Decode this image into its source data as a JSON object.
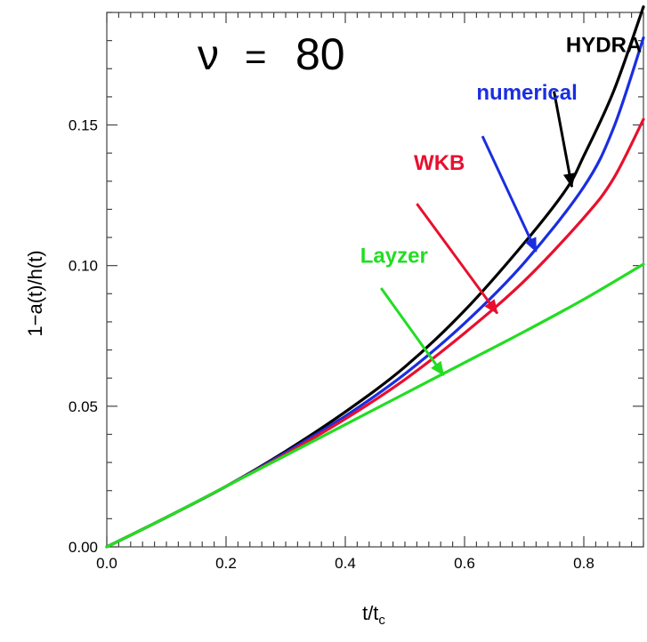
{
  "chart_data": {
    "type": "line",
    "xlabel": "t/t",
    "xlabel_subscript": "c",
    "ylabel": "1−a(t)/h(t)",
    "xlim": [
      0.0,
      0.9
    ],
    "ylim": [
      0.0,
      0.19
    ],
    "x_ticks": [
      "0.0",
      "0.2",
      "0.4",
      "0.6",
      "0.8"
    ],
    "y_ticks": [
      "0.00",
      "0.05",
      "0.10",
      "0.15"
    ],
    "grid": false,
    "legend": "none",
    "annotation": {
      "symbol": "ν",
      "equals": "=",
      "value": "80"
    },
    "series": [
      {
        "name": "HYDRA",
        "color": "#000000",
        "x": [
          0.0,
          0.1,
          0.2,
          0.3,
          0.4,
          0.5,
          0.6,
          0.7,
          0.77,
          0.8,
          0.85,
          0.9
        ],
        "y": [
          0.0,
          0.0105,
          0.0215,
          0.034,
          0.048,
          0.064,
          0.084,
          0.108,
          0.127,
          0.139,
          0.162,
          0.192
        ]
      },
      {
        "name": "numerical",
        "color": "#1a2ee0",
        "x": [
          0.0,
          0.1,
          0.2,
          0.3,
          0.4,
          0.5,
          0.6,
          0.7,
          0.8,
          0.85,
          0.9
        ],
        "y": [
          0.0,
          0.0105,
          0.0215,
          0.0335,
          0.0465,
          0.0615,
          0.0795,
          0.101,
          0.128,
          0.149,
          0.181
        ]
      },
      {
        "name": "WKB",
        "color": "#e8102e",
        "x": [
          0.0,
          0.1,
          0.2,
          0.3,
          0.4,
          0.5,
          0.6,
          0.7,
          0.8,
          0.85,
          0.9
        ],
        "y": [
          0.0,
          0.0105,
          0.0215,
          0.033,
          0.0455,
          0.0595,
          0.076,
          0.0945,
          0.117,
          0.131,
          0.152
        ]
      },
      {
        "name": "Layzer",
        "color": "#22dd22",
        "x": [
          0.0,
          0.1,
          0.2,
          0.3,
          0.4,
          0.5,
          0.6,
          0.7,
          0.8,
          0.9
        ],
        "y": [
          0.0,
          0.0105,
          0.0215,
          0.0325,
          0.0435,
          0.0545,
          0.0655,
          0.0765,
          0.088,
          0.1005
        ]
      }
    ],
    "labels": [
      {
        "text": "HYDRA",
        "color": "#000000",
        "series": 0,
        "label_at": [
          0.77,
          0.176
        ],
        "arrow_from": [
          0.75,
          0.162
        ],
        "arrow_to": [
          0.78,
          0.128
        ]
      },
      {
        "text": "numerical",
        "color": "#1a2ee0",
        "series": 1,
        "label_at": [
          0.62,
          0.159
        ],
        "arrow_from": [
          0.63,
          0.146
        ],
        "arrow_to": [
          0.72,
          0.105
        ]
      },
      {
        "text": "WKB",
        "color": "#e8102e",
        "series": 2,
        "label_at": [
          0.515,
          0.134
        ],
        "arrow_from": [
          0.52,
          0.122
        ],
        "arrow_to": [
          0.655,
          0.083
        ]
      },
      {
        "text": "Layzer",
        "color": "#22dd22",
        "series": 3,
        "label_at": [
          0.425,
          0.101
        ],
        "arrow_from": [
          0.46,
          0.092
        ],
        "arrow_to": [
          0.565,
          0.061
        ]
      }
    ]
  }
}
